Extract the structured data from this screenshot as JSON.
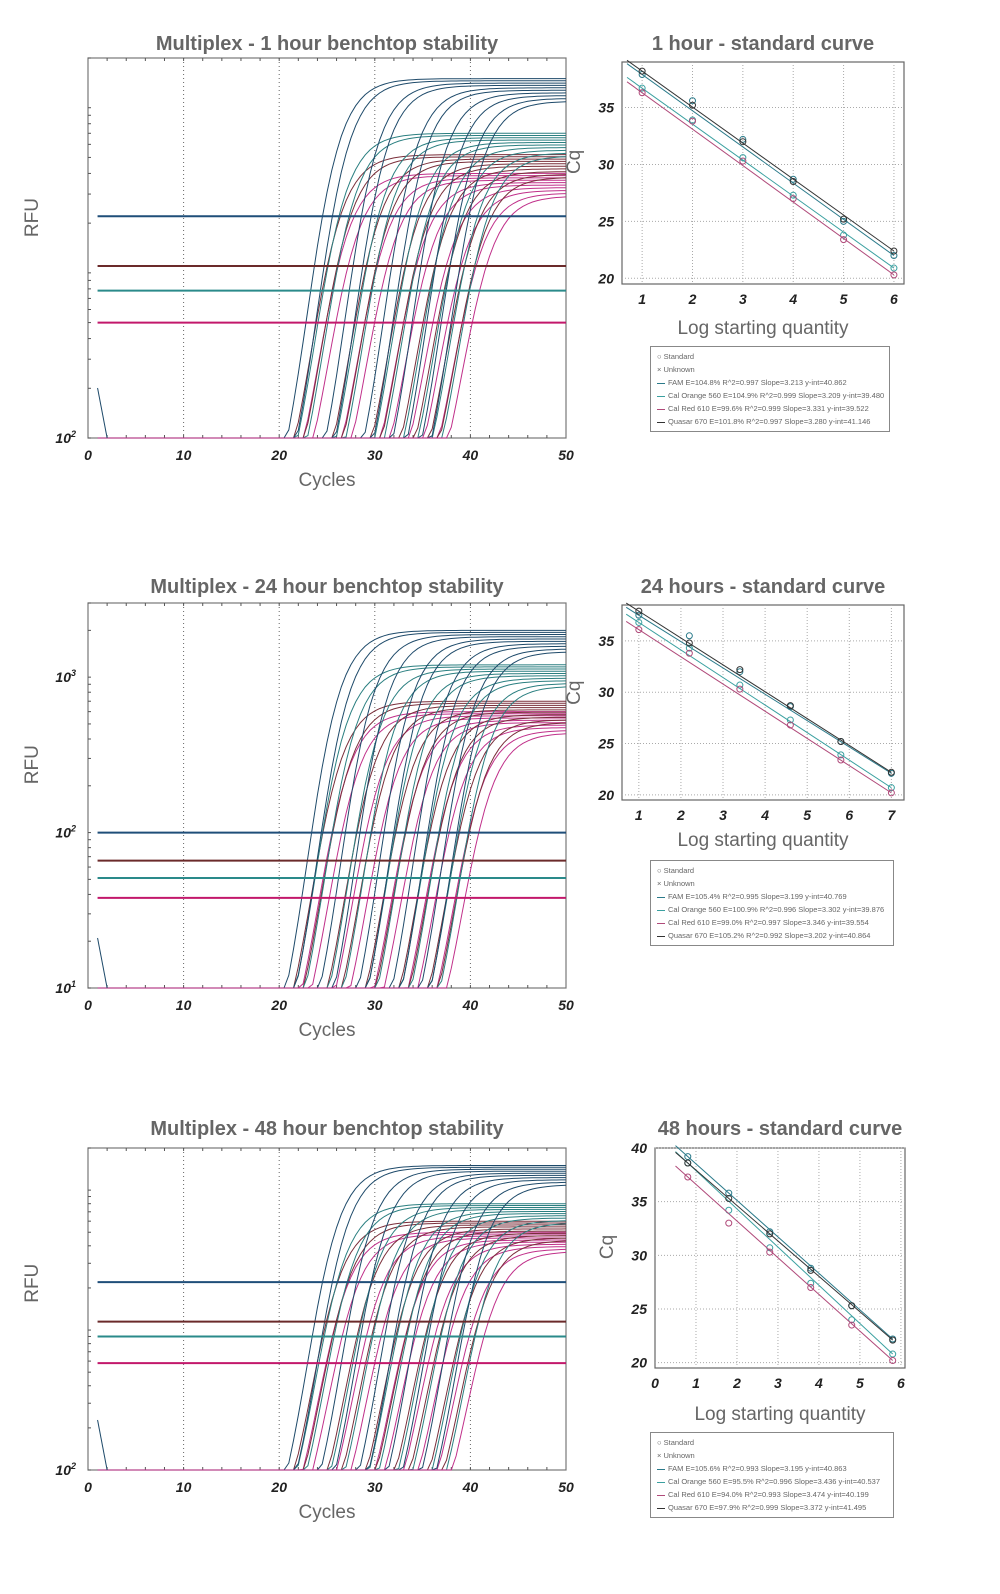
{
  "chart_data": [
    {
      "type": "line",
      "title": "Multiplex - 1 hour benchtop stability",
      "xlabel": "Cycles",
      "ylabel": "RFU",
      "xlim": [
        0,
        50
      ],
      "xticks": [
        "0",
        "10",
        "20",
        "30",
        "40",
        "50"
      ],
      "yscale": "log",
      "yticks": [
        {
          "label": "10",
          "exp": "2",
          "value": 100
        }
      ],
      "ylim": [
        100,
        20000
      ],
      "grid": "vertical dotted",
      "thresholds": [
        {
          "name": "Quasar 670",
          "color": "#1f4e79",
          "value": 2200
        },
        {
          "name": "Cal Red 610",
          "color": "#6b2a2a",
          "value": 1100
        },
        {
          "name": "FAM",
          "color": "#2a8a8a",
          "value": 780
        },
        {
          "name": "Cal Orange 560",
          "color": "#c2186b",
          "value": 500
        }
      ],
      "ct_groups": [
        20.5,
        21.5,
        24.5,
        25.5,
        28.5,
        29.5,
        31.5,
        33,
        34.5,
        35.5
      ],
      "plateaus": {
        "Quasar 670": 15000,
        "FAM": 7000,
        "Cal Red 610": 5200,
        "Cal Orange 560": 4000
      }
    },
    {
      "type": "scatter",
      "title": "1 hour - standard curve",
      "xlabel": "Log starting quantity",
      "ylabel": "Cq",
      "xlim": [
        0.6,
        6.2
      ],
      "ylim": [
        19.5,
        39
      ],
      "xticks": [
        "1",
        "2",
        "3",
        "4",
        "5",
        "6"
      ],
      "yticks": [
        "20",
        "25",
        "30",
        "35"
      ],
      "x": [
        1,
        2,
        3,
        4,
        5,
        6
      ],
      "series": [
        {
          "name": "FAM",
          "color": "#2a7a8a",
          "slope": -3.213,
          "yint": 40.862,
          "E": "104.8%",
          "R2": "0.997",
          "values": [
            37.9,
            35.6,
            32.2,
            28.7,
            25.0,
            22.0
          ]
        },
        {
          "name": "Cal Orange 560",
          "color": "#3aa0a0",
          "slope": -3.209,
          "yint": 39.48,
          "E": "104.9%",
          "R2": "0.999",
          "values": [
            36.7,
            33.9,
            30.6,
            27.3,
            23.8,
            20.9
          ]
        },
        {
          "name": "Cal Red 610",
          "color": "#b04a7a",
          "slope": -3.331,
          "yint": 39.522,
          "E": "99.6%",
          "R2": "0.999",
          "values": [
            36.3,
            33.8,
            30.3,
            27.0,
            23.4,
            20.3
          ]
        },
        {
          "name": "Quasar 670",
          "color": "#333333",
          "slope": -3.28,
          "yint": 41.146,
          "E": "101.8%",
          "R2": "0.997",
          "values": [
            38.2,
            35.2,
            32.0,
            28.5,
            25.2,
            22.4
          ]
        }
      ]
    },
    {
      "type": "line",
      "title": "Multiplex - 24 hour benchtop stability",
      "xlabel": "Cycles",
      "ylabel": "RFU",
      "xlim": [
        0,
        50
      ],
      "xticks": [
        "0",
        "10",
        "20",
        "30",
        "40",
        "50"
      ],
      "yscale": "log",
      "yticks": [
        {
          "label": "10",
          "exp": "1",
          "value": 10
        },
        {
          "label": "10",
          "exp": "2",
          "value": 100
        },
        {
          "label": "10",
          "exp": "3",
          "value": 1000
        }
      ],
      "ylim": [
        10,
        3000
      ],
      "grid": "vertical dotted",
      "thresholds": [
        {
          "name": "Quasar 670",
          "color": "#1f4e79",
          "value": 100
        },
        {
          "name": "Cal Red 610",
          "color": "#6b2a2a",
          "value": 66
        },
        {
          "name": "FAM",
          "color": "#2a8a8a",
          "value": 51
        },
        {
          "name": "Cal Orange 560",
          "color": "#c2186b",
          "value": 38
        }
      ],
      "ct_groups": [
        20.5,
        21.5,
        24,
        25.5,
        28,
        29,
        31.5,
        32.5,
        34.5,
        35.5
      ],
      "plateaus": {
        "Quasar 670": 2000,
        "FAM": 1200,
        "Cal Red 610": 700,
        "Cal Orange 560": 600
      }
    },
    {
      "type": "scatter",
      "title": "24 hours - standard curve",
      "xlabel": "Log starting quantity",
      "ylabel": "Cq",
      "xlim": [
        0.6,
        7.3
      ],
      "ylim": [
        19.5,
        38.5
      ],
      "xticks": [
        "1",
        "2",
        "3",
        "4",
        "5",
        "6",
        "7"
      ],
      "yticks": [
        "20",
        "25",
        "30",
        "35"
      ],
      "x": [
        1,
        2.2,
        3.4,
        4.6,
        5.8,
        7
      ],
      "series": [
        {
          "name": "FAM",
          "color": "#2a7a8a",
          "slope": -3.199,
          "yint": 40.769,
          "E": "105.4%",
          "R2": "0.995",
          "values": [
            37.5,
            35.5,
            32.0,
            28.6,
            25.2,
            22.1
          ]
        },
        {
          "name": "Cal Orange 560",
          "color": "#3aa0a0",
          "slope": -3.302,
          "yint": 39.876,
          "E": "100.9%",
          "R2": "0.996",
          "values": [
            36.8,
            34.3,
            30.7,
            27.3,
            23.9,
            20.7
          ]
        },
        {
          "name": "Cal Red 610",
          "color": "#b04a7a",
          "slope": -3.346,
          "yint": 39.554,
          "E": "99.0%",
          "R2": "0.997",
          "values": [
            36.1,
            33.8,
            30.3,
            26.8,
            23.4,
            20.2
          ]
        },
        {
          "name": "Quasar 670",
          "color": "#333333",
          "slope": -3.202,
          "yint": 40.864,
          "E": "105.2%",
          "R2": "0.992",
          "values": [
            37.9,
            34.8,
            32.2,
            28.7,
            25.2,
            22.2
          ]
        }
      ]
    },
    {
      "type": "line",
      "title": "Multiplex - 48 hour benchtop stability",
      "xlabel": "Cycles",
      "ylabel": "RFU",
      "xlim": [
        0,
        50
      ],
      "xticks": [
        "0",
        "10",
        "20",
        "30",
        "40",
        "50"
      ],
      "yscale": "log",
      "yticks": [
        {
          "label": "10",
          "exp": "2",
          "value": 100
        }
      ],
      "ylim": [
        100,
        20000
      ],
      "grid": "vertical dotted",
      "thresholds": [
        {
          "name": "Quasar 670",
          "color": "#1f4e79",
          "value": 2200
        },
        {
          "name": "Cal Red 610",
          "color": "#6b2a2a",
          "value": 1150
        },
        {
          "name": "FAM",
          "color": "#2a8a8a",
          "value": 900
        },
        {
          "name": "Cal Orange 560",
          "color": "#c2186b",
          "value": 580
        }
      ],
      "ct_groups": [
        20.5,
        21.5,
        24,
        25.5,
        28,
        29,
        31,
        32.5,
        34.5,
        36
      ],
      "plateaus": {
        "Quasar 670": 15000,
        "FAM": 8000,
        "Cal Red 610": 6000,
        "Cal Orange 560": 5000
      }
    },
    {
      "type": "scatter",
      "title": "48 hours - standard curve",
      "xlabel": "Log starting quantity",
      "ylabel": "Cq",
      "xlim": [
        0,
        6.1
      ],
      "ylim": [
        19.5,
        40
      ],
      "xticks": [
        "0",
        "1",
        "2",
        "3",
        "4",
        "5",
        "6"
      ],
      "yticks": [
        "20",
        "25",
        "30",
        "35",
        "40"
      ],
      "x": [
        0.8,
        1.8,
        2.8,
        3.8,
        4.8,
        5.8
      ],
      "series": [
        {
          "name": "FAM",
          "color": "#2a7a8a",
          "slope": -3.195,
          "yint": 40.863,
          "E": "105.6%",
          "R2": "0.993",
          "values": [
            39.2,
            35.8,
            32.2,
            28.8,
            25.3,
            22.2
          ]
        },
        {
          "name": "Cal Orange 560",
          "color": "#3aa0a0",
          "slope": -3.436,
          "yint": 40.537,
          "E": "95.5%",
          "R2": "0.996",
          "values": [
            38.6,
            34.2,
            30.7,
            27.4,
            24.0,
            20.8
          ]
        },
        {
          "name": "Cal Red 610",
          "color": "#b04a7a",
          "slope": -3.474,
          "yint": 40.199,
          "E": "94.0%",
          "R2": "0.993",
          "values": [
            37.3,
            33.0,
            30.3,
            27.0,
            23.5,
            20.2
          ]
        },
        {
          "name": "Quasar 670",
          "color": "#333333",
          "slope": -3.372,
          "yint": 41.495,
          "E": "97.9%",
          "R2": "0.999",
          "values": [
            38.6,
            35.3,
            32.0,
            28.6,
            25.3,
            22.1
          ]
        }
      ]
    }
  ],
  "legends": [
    {
      "standard": "Standard",
      "unknown": "Unknown",
      "rows": [
        {
          "color": "#2a7a8a",
          "text": "FAM  E=104.8% R^2=0.997 Slope=3.213 y-int=40.862"
        },
        {
          "color": "#3aa0a0",
          "text": "Cal Orange 560  E=104.9% R^2=0.999 Slope=3.209 y-int=39.480"
        },
        {
          "color": "#b04a7a",
          "text": "Cal Red 610  E=99.6% R^2=0.999 Slope=3.331 y-int=39.522"
        },
        {
          "color": "#333333",
          "text": "Quasar 670  E=101.8% R^2=0.997 Slope=3.280 y-int=41.146"
        }
      ]
    },
    {
      "standard": "Standard",
      "unknown": "Unknown",
      "rows": [
        {
          "color": "#2a7a8a",
          "text": "FAM  E=105.4% R^2=0.995 Slope=3.199 y-int=40.769"
        },
        {
          "color": "#3aa0a0",
          "text": "Cal Orange 560  E=100.9% R^2=0.996 Slope=3.302 y-int=39.876"
        },
        {
          "color": "#b04a7a",
          "text": "Cal Red 610  E=99.0% R^2=0.997 Slope=3.346 y-int=39.554"
        },
        {
          "color": "#333333",
          "text": "Quasar 670  E=105.2% R^2=0.992 Slope=3.202 y-int=40.864"
        }
      ]
    },
    {
      "standard": "Standard",
      "unknown": "Unknown",
      "rows": [
        {
          "color": "#2a7a8a",
          "text": "FAM  E=105.6% R^2=0.993 Slope=3.195 y-int=40.863"
        },
        {
          "color": "#3aa0a0",
          "text": "Cal Orange 560  E=95.5% R^2=0.996 Slope=3.436 y-int=40.537"
        },
        {
          "color": "#b04a7a",
          "text": "Cal Red 610  E=94.0% R^2=0.993 Slope=3.474 y-int=40.199"
        },
        {
          "color": "#333333",
          "text": "Quasar 670  E=97.9% R^2=0.999 Slope=3.372 y-int=41.495"
        }
      ]
    }
  ]
}
